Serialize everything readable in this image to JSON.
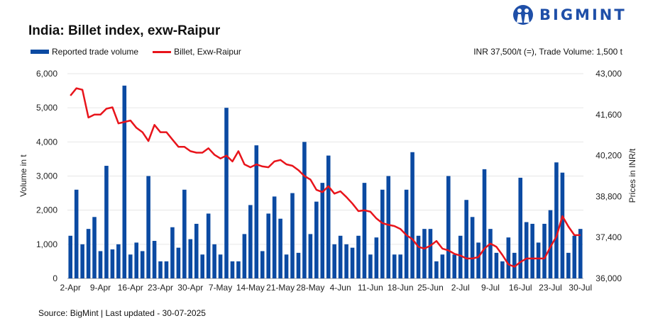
{
  "header": {
    "title": "India: Billet index, exw-Raipur",
    "logo_text": "BIGMINT",
    "note": "INR 37,500/t (=), Trade Volume: 1,500 t"
  },
  "footer": {
    "source": "Source: BigMint | Last updated - 30-07-2025"
  },
  "colors": {
    "bar": "#0b4aa2",
    "line": "#e8141b",
    "grid": "#e6e6e6",
    "brand": "#1f4fa8"
  },
  "chart_data": {
    "type": "bar+line",
    "title": "India: Billet index, exw-Raipur",
    "legend_position": "top-left",
    "grid": true,
    "x_tick_labels": [
      "2-Apr",
      "9-Apr",
      "16-Apr",
      "23-Apr",
      "30-Apr",
      "7-May",
      "14-May",
      "21-May",
      "28-May",
      "4-Jun",
      "11-Jun",
      "18-Jun",
      "25-Jun",
      "2-Jul",
      "9-Jul",
      "16-Jul",
      "23-Jul",
      "30-Jul"
    ],
    "y_left": {
      "label": "Volume in t",
      "lim": [
        0,
        6000
      ],
      "ticks": [
        "0",
        "1,000",
        "2,000",
        "3,000",
        "4,000",
        "5,000",
        "6,000"
      ]
    },
    "y_right": {
      "label": "Prices in INR/t",
      "lim": [
        36000,
        43000
      ],
      "ticks": [
        "36,000",
        "37,400",
        "38,800",
        "40,200",
        "41,600",
        "43,000"
      ]
    },
    "series": [
      {
        "name": "Reported trade volume",
        "type": "bar",
        "axis": "left",
        "values": [
          1250,
          2600,
          1000,
          1450,
          1800,
          800,
          3300,
          850,
          1000,
          5650,
          700,
          1050,
          800,
          3000,
          1100,
          500,
          500,
          1500,
          900,
          2600,
          1150,
          1600,
          700,
          1900,
          1000,
          700,
          5000,
          500,
          500,
          1300,
          2150,
          3900,
          800,
          1900,
          2400,
          1750,
          700,
          2500,
          750,
          4000,
          1300,
          2250,
          2800,
          3600,
          1000,
          1250,
          1000,
          900,
          1250,
          2800,
          700,
          1200,
          2600,
          3000,
          700,
          700,
          2600,
          3700,
          1250,
          1450,
          1450,
          500,
          700,
          3000,
          700,
          1250,
          2300,
          1800,
          1050,
          3200,
          1450,
          750,
          500,
          1200,
          750,
          2950,
          1650,
          1600,
          1050,
          1600,
          2000,
          3400,
          3100,
          750,
          1250,
          1450
        ]
      },
      {
        "name": "Billet, Exw-Raipur",
        "type": "line",
        "axis": "right",
        "values": [
          42250,
          42500,
          42450,
          41500,
          41600,
          41600,
          41800,
          41850,
          41300,
          41350,
          41400,
          41150,
          41000,
          40700,
          41250,
          41000,
          41000,
          40750,
          40500,
          40500,
          40350,
          40300,
          40300,
          40450,
          40230,
          40100,
          40200,
          40000,
          40350,
          39900,
          39800,
          39900,
          39830,
          39800,
          40000,
          40050,
          39900,
          39850,
          39700,
          39500,
          39380,
          39030,
          38950,
          39150,
          38900,
          38980,
          38780,
          38560,
          38300,
          38330,
          38280,
          38050,
          37890,
          37830,
          37790,
          37690,
          37480,
          37340,
          37080,
          37020,
          37120,
          37280,
          37020,
          36960,
          36840,
          36780,
          36680,
          36680,
          36730,
          37020,
          37190,
          37080,
          36800,
          36480,
          36400,
          36560,
          36680,
          36680,
          36680,
          36680,
          37080,
          37430,
          38130,
          37770,
          37480,
          37480
        ]
      }
    ]
  }
}
